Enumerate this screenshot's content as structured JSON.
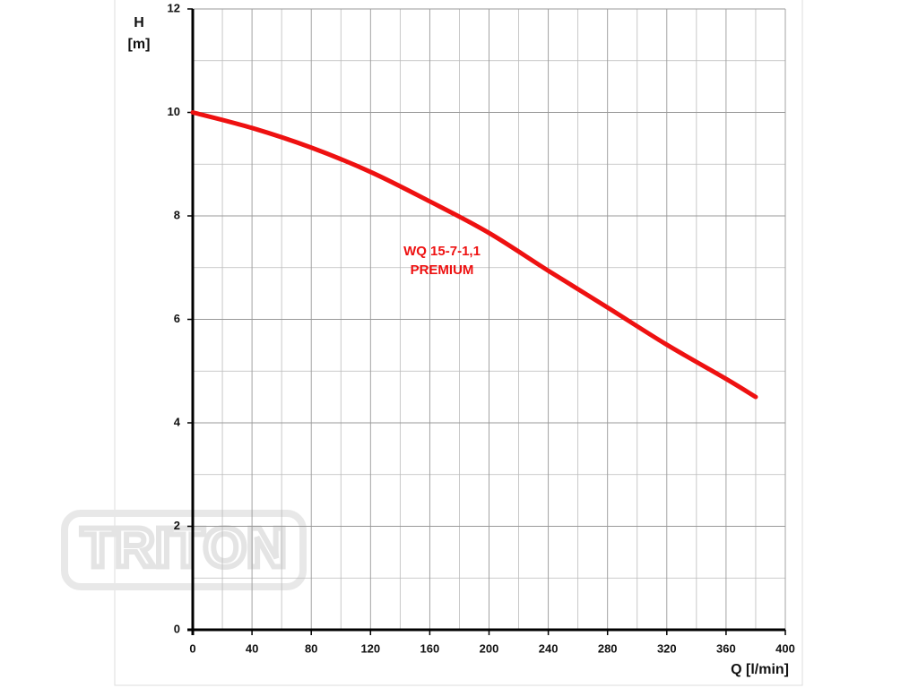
{
  "chart_data": {
    "type": "line",
    "y_label": [
      "H",
      "[m]"
    ],
    "x_label": "Q [l/min]",
    "x": [
      0,
      40,
      80,
      120,
      160,
      200,
      240,
      280,
      320,
      360,
      380
    ],
    "series": [
      {
        "name": "WQ 15-7-1,1 PREMIUM",
        "color": "#ee1111",
        "values": [
          10.0,
          9.7,
          9.32,
          8.85,
          8.28,
          7.67,
          6.94,
          6.23,
          5.51,
          4.85,
          4.5
        ]
      }
    ],
    "annotation": [
      "WQ 15-7-1,1",
      "PREMIUM"
    ],
    "xlim": [
      0,
      400
    ],
    "ylim": [
      0,
      12
    ],
    "xticks": [
      0,
      40,
      80,
      120,
      160,
      200,
      240,
      280,
      320,
      360,
      400
    ],
    "yticks": [
      0,
      2,
      4,
      6,
      8,
      10,
      12
    ],
    "x_minor_ticks": [
      20,
      60,
      100,
      140,
      180,
      220,
      260,
      300,
      340,
      380
    ],
    "y_minor_ticks": [
      1,
      3,
      5,
      7,
      9,
      11
    ],
    "grid": true,
    "watermark": "TRITON"
  }
}
